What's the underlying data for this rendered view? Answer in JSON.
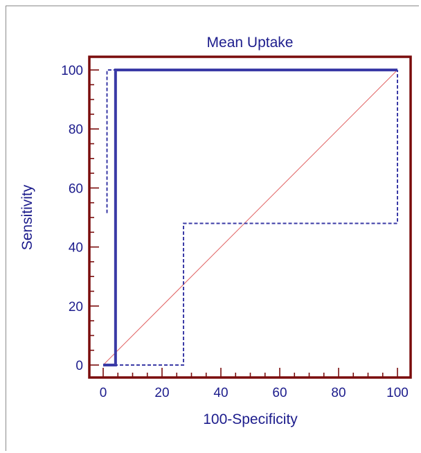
{
  "chart_data": {
    "type": "line",
    "title": "Mean Uptake",
    "xlabel": "100-Specificity",
    "ylabel": "Sensitivity",
    "xlim": [
      0,
      100
    ],
    "ylim": [
      0,
      100
    ],
    "xticks": [
      0,
      20,
      40,
      60,
      80,
      100
    ],
    "yticks": [
      0,
      20,
      40,
      60,
      80,
      100
    ],
    "grid": false,
    "legend": "none",
    "colors": {
      "frame": "#7a0c0c",
      "roc": "#3a3aa6",
      "diagonal": "#e06060",
      "text": "#1c1c8c"
    },
    "series": [
      {
        "role": "roc",
        "style": "solid",
        "x": [
          0,
          4.2,
          4.2,
          100
        ],
        "y": [
          0,
          0,
          100,
          100
        ]
      },
      {
        "role": "upper-ci",
        "style": "dashed",
        "x": [
          1.3,
          1.3,
          100
        ],
        "y": [
          51.5,
          100,
          100
        ]
      },
      {
        "role": "lower-ci",
        "style": "dashed",
        "x": [
          0,
          27.3,
          27.3,
          100,
          100
        ],
        "y": [
          0,
          0,
          48,
          48,
          100
        ]
      },
      {
        "role": "reference-diagonal",
        "style": "solid-thin",
        "x": [
          0,
          100
        ],
        "y": [
          0,
          100
        ]
      }
    ]
  }
}
